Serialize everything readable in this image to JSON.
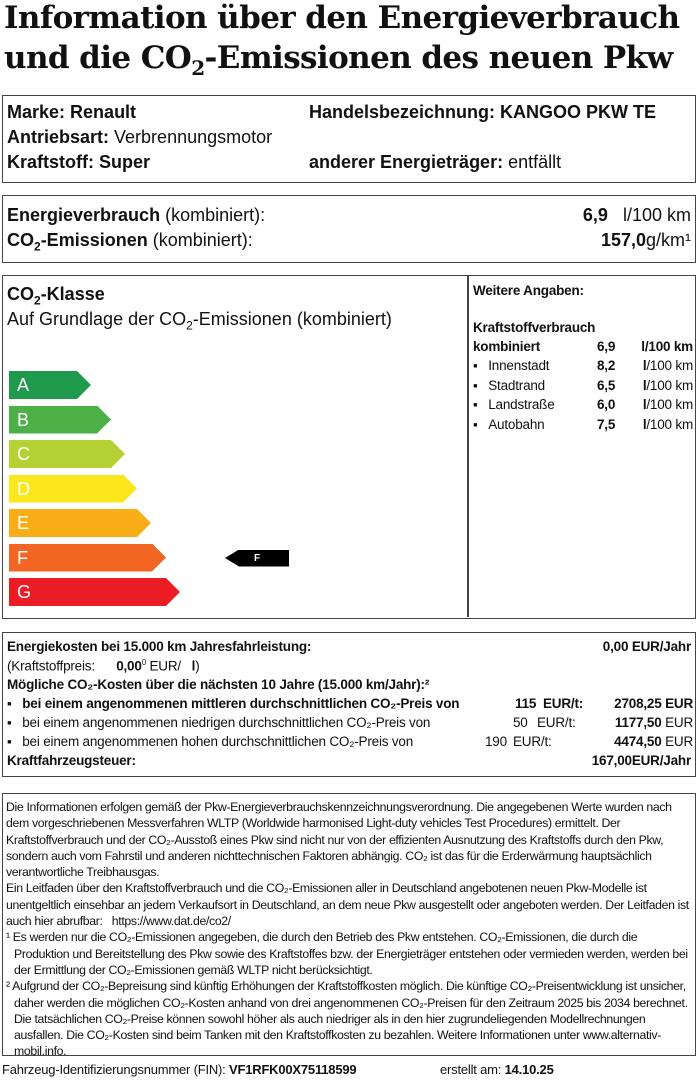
{
  "title": {
    "line1": "Information über den Energieverbrauch",
    "line2_a": "und die CO",
    "line2_sub": "2",
    "line2_b": "-Emissionen des neuen Pkw"
  },
  "vehicle": {
    "marke_label": "Marke:",
    "marke": "Renault",
    "handel_label": "Handelsbezeichnung:",
    "handel": "KANGOO PKW TE",
    "antrieb_label": "Antriebsart:",
    "antrieb": "Verbrennungsmotor",
    "kraftstoff_label": "Kraftstoff:",
    "kraftstoff": "Super",
    "andere_label": "anderer Energieträger:",
    "andere": "entfällt"
  },
  "consumption": {
    "energy_label": "Energieverbrauch",
    "energy_suffix": "(kombiniert):",
    "energy_value": "6,9",
    "energy_unit": "l/100 km",
    "co2_label_a": "CO",
    "co2_label_b": "-Emissionen",
    "co2_suffix": "(kombiniert):",
    "co2_value": "157,0",
    "co2_unit": "g/km¹"
  },
  "co2class": {
    "heading_a": "CO",
    "heading_b": "-Klasse",
    "subheading_a": "Auf Grundlage der CO",
    "subheading_b": "-Emissionen (kombiniert)",
    "classes": [
      {
        "letter": "A",
        "color": "#1f9a4d"
      },
      {
        "letter": "B",
        "color": "#4cb047"
      },
      {
        "letter": "C",
        "color": "#b6d133"
      },
      {
        "letter": "D",
        "color": "#fbe71c"
      },
      {
        "letter": "E",
        "color": "#f9ae17"
      },
      {
        "letter": "F",
        "color": "#f26522"
      },
      {
        "letter": "G",
        "color": "#ec1c24"
      }
    ],
    "current": "F"
  },
  "weitere": {
    "heading": "Weitere Angaben:",
    "sub": "Kraftstoffverbrauch",
    "combined_label": "kombiniert",
    "combined_value": "6,9",
    "combined_unit": "l/100 km",
    "items": [
      {
        "label": "Innenstadt",
        "value": "8,2",
        "unit_a": "l",
        "unit_b": "/100 km"
      },
      {
        "label": "Stadtrand",
        "value": "6,5",
        "unit_a": "l",
        "unit_b": "/100 km"
      },
      {
        "label": "Landstraße",
        "value": "6,0",
        "unit_a": "l",
        "unit_b": "/100 km"
      },
      {
        "label": "Autobahn",
        "value": "7,5",
        "unit_a": "l",
        "unit_b": "/100 km"
      }
    ]
  },
  "costs": {
    "energy_label": "Energiekosten bei 15.000 km Jahresfahrleistung:",
    "energy_value": "0,00 EUR/Jahr",
    "price_label": "(Kraftstoffpreis:",
    "price_value": "0,00",
    "price_sup": "0",
    "price_unit": "EUR/",
    "price_l": "l",
    ")": ")",
    "co2_heading": "Mögliche CO₂-Kosten über die nächsten 10 Jahre (15.000 km/Jahr):²",
    "mid_label": "bei einem angenommenen mittleren durchschnittlichen CO₂-Preis von",
    "mid_price": "115",
    "mid_unit": "EUR/t:",
    "mid_value": "2708,25 EUR",
    "low_label": "bei einem angenommenen niedrigen durchschnittlichen CO₂-Preis von",
    "low_price": "50",
    "low_unit": "EUR/t:",
    "low_value": "1177,50",
    "low_cur": "EUR",
    "high_label": "bei einem angenommenen hohen durchschnittlichen CO₂-Preis von",
    "high_price": "190",
    "high_unit": "EUR/t:",
    "high_value": "4474,50",
    "high_cur": "EUR",
    "tax_label": "Kraftfahrzeugsteuer:",
    "tax_value": "167,00",
    "tax_unit": "EUR/Jahr"
  },
  "notes": {
    "p1": "Die Informationen erfolgen gemäß der Pkw-Energieverbrauchskennzeichnungsverordnung. Die angegebenen Werte wurden nach dem vorgeschriebenen Messverfahren WLTP (Worldwide harmonised Light-duty vehicles Test Procedures) ermittelt. Der Kraftstoffverbrauch und der CO₂-Ausstoß eines Pkw sind nicht nur von der effizienten Ausnutzung des Kraftstoffs durch den Pkw, sondern auch vom Fahrstil und anderen nichttechnischen Faktoren abhängig. CO₂ ist das für die Erderwärmung hauptsächlich verantwortliche Treibhausgas.",
    "p2": "Ein Leitfaden über den Kraftstoffverbrauch und die CO₂-Emissionen aller in Deutschland angebotenen neuen Pkw-Modelle ist unentgeltlich einsehbar an jedem Verkaufsort in Deutschland, an dem neue Pkw ausgestellt oder angeboten werden. Der Leitfaden ist auch hier abrufbar:",
    "link": "https://www.dat.de/co2/",
    "f1": "¹ Es werden nur die CO₂-Emissionen angegeben, die durch den Betrieb des Pkw entstehen. CO₂-Emissionen, die durch die Produktion und Bereitstellung des Pkw sowie des Kraftstoffes bzw. der Energieträger entstehen oder vermieden werden, werden bei der Ermittlung der CO₂-Emissionen gemäß WLTP nicht berücksichtigt.",
    "f2": "² Aufgrund der CO₂-Bepreisung sind künftig Erhöhungen der Kraftstoffkosten möglich. Die künftige CO₂-Preisentwicklung ist unsicher, daher werden die möglichen CO₂-Kosten anhand von drei angenommenen CO₂-Preisen für den Zeitraum  2025  bis  2034  berechnet. Die tatsächlichen CO₂-Preise können sowohl höher als auch niedriger als in den hier zugrundeliegenden Modellrechnungen ausfallen. Die CO₂-Kosten sind beim Tanken mit den Kraftstoffkosten zu bezahlen. Weitere Informationen unter www.alternativ-mobil.info."
  },
  "footer": {
    "fin_label": "Fahrzeug-Identifizierungsnummer (FIN):",
    "fin": "VF1RFK00X75118599",
    "date_label": "erstellt am:",
    "date": "14.10.25"
  }
}
